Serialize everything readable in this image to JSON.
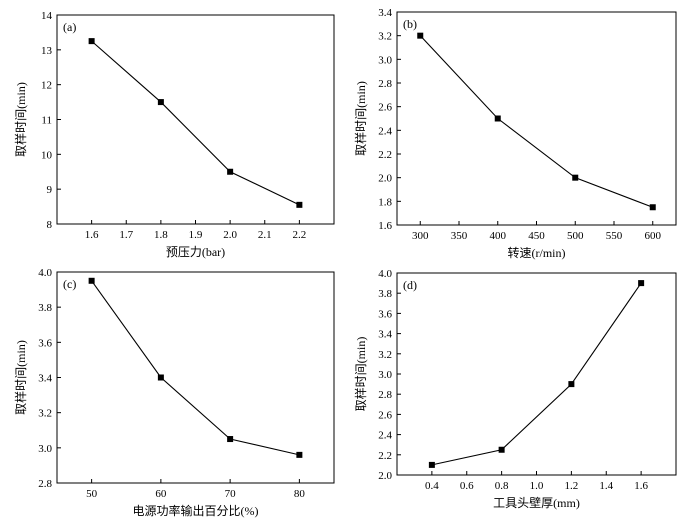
{
  "chart_data": [
    {
      "type": "line",
      "panel_label": "(a)",
      "xlabel": "预压力(bar)",
      "ylabel": "取样时间(min)",
      "x": [
        1.6,
        1.8,
        2.0,
        2.2
      ],
      "series": [
        {
          "values": [
            13.25,
            11.5,
            9.5,
            8.55
          ]
        }
      ],
      "xlim": [
        1.5,
        2.3
      ],
      "ylim": [
        8,
        14
      ],
      "xticks": [
        "1.6",
        "1.7",
        "1.8",
        "1.9",
        "2.0",
        "2.1",
        "2.2"
      ],
      "yticks": [
        "8",
        "9",
        "10",
        "11",
        "12",
        "13",
        "14"
      ],
      "marker": "square",
      "color": "#000000"
    },
    {
      "type": "line",
      "panel_label": "(b)",
      "xlabel": "转速(r/min)",
      "ylabel": "取样时间(min)",
      "x": [
        300,
        400,
        500,
        600
      ],
      "series": [
        {
          "values": [
            3.2,
            2.5,
            2.0,
            1.75
          ]
        }
      ],
      "xlim": [
        270,
        630
      ],
      "ylim": [
        1.6,
        3.4
      ],
      "xticks": [
        "300",
        "350",
        "400",
        "450",
        "500",
        "550",
        "600"
      ],
      "yticks": [
        "1.6",
        "1.8",
        "2.0",
        "2.2",
        "2.4",
        "2.6",
        "2.8",
        "3.0",
        "3.2",
        "3.4"
      ],
      "marker": "square",
      "color": "#000000"
    },
    {
      "type": "line",
      "panel_label": "(c)",
      "xlabel": "电源功率输出百分比(%)",
      "ylabel": "取样时间(min)",
      "x": [
        50,
        60,
        70,
        80
      ],
      "series": [
        {
          "values": [
            3.95,
            3.4,
            3.05,
            2.96
          ]
        }
      ],
      "xlim": [
        45,
        85
      ],
      "ylim": [
        2.8,
        4.0
      ],
      "xticks": [
        "50",
        "60",
        "70",
        "80"
      ],
      "yticks": [
        "2.8",
        "3.0",
        "3.2",
        "3.4",
        "3.6",
        "3.8",
        "4.0"
      ],
      "marker": "square",
      "color": "#000000"
    },
    {
      "type": "line",
      "panel_label": "(d)",
      "xlabel": "工具头壁厚(mm)",
      "ylabel": "取样时间(min)",
      "x": [
        0.4,
        0.8,
        1.2,
        1.6
      ],
      "series": [
        {
          "values": [
            2.1,
            2.25,
            2.9,
            3.9
          ]
        }
      ],
      "xlim": [
        0.2,
        1.8
      ],
      "ylim": [
        2.0,
        4.0
      ],
      "xticks": [
        "0.4",
        "0.6",
        "0.8",
        "1.0",
        "1.2",
        "1.4",
        "1.6"
      ],
      "yticks": [
        "2.0",
        "2.2",
        "2.4",
        "2.6",
        "2.8",
        "3.0",
        "3.2",
        "3.4",
        "3.6",
        "3.8",
        "4.0"
      ],
      "marker": "square",
      "color": "#000000"
    }
  ]
}
